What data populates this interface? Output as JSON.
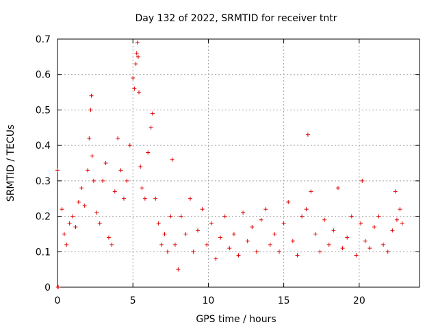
{
  "chart_data": {
    "type": "scatter",
    "title": "Day 132 of 2022, SRMTID for receiver tntr",
    "xlabel": "GPS time / hours",
    "ylabel": "SRMTID / TECUs",
    "xlim": [
      0,
      24
    ],
    "ylim": [
      0,
      0.7
    ],
    "xticks": [
      "0",
      "5",
      "10",
      "15",
      "20"
    ],
    "xtick_values": [
      0,
      5,
      10,
      15,
      20
    ],
    "yticks": [
      "0",
      "0.1",
      "0.2",
      "0.3",
      "0.4",
      "0.5",
      "0.6",
      "0.7"
    ],
    "ytick_values": [
      0,
      0.1,
      0.2,
      0.3,
      0.4,
      0.5,
      0.6,
      0.7
    ],
    "grid": true,
    "marker": "+",
    "color": "#e00000",
    "series": [
      {
        "name": "SRMTID",
        "x": [
          0.0,
          0.03,
          0.05,
          0.3,
          0.45,
          0.6,
          0.8,
          1.0,
          1.2,
          1.4,
          1.6,
          1.8,
          2.0,
          2.1,
          2.2,
          2.25,
          2.3,
          2.4,
          2.6,
          2.8,
          3.0,
          3.2,
          3.4,
          3.6,
          3.8,
          4.0,
          4.2,
          4.4,
          4.6,
          4.8,
          5.0,
          5.1,
          5.2,
          5.25,
          5.3,
          5.35,
          5.4,
          5.5,
          5.6,
          5.8,
          6.0,
          6.2,
          6.3,
          6.5,
          6.7,
          6.9,
          7.1,
          7.3,
          7.5,
          7.6,
          7.8,
          8.0,
          8.2,
          8.5,
          8.8,
          9.0,
          9.3,
          9.6,
          9.9,
          10.2,
          10.5,
          10.8,
          11.1,
          11.4,
          11.7,
          12.0,
          12.3,
          12.6,
          12.9,
          13.2,
          13.5,
          13.8,
          14.1,
          14.4,
          14.7,
          15.0,
          15.3,
          15.6,
          15.9,
          16.2,
          16.5,
          16.6,
          16.8,
          17.1,
          17.4,
          17.7,
          18.0,
          18.3,
          18.6,
          18.9,
          19.2,
          19.5,
          19.8,
          20.1,
          20.2,
          20.4,
          20.7,
          21.0,
          21.3,
          21.6,
          21.9,
          22.2,
          22.4,
          22.5,
          22.7,
          22.85
        ],
        "values": [
          0.33,
          0.0,
          0.0,
          0.22,
          0.15,
          0.12,
          0.18,
          0.2,
          0.17,
          0.24,
          0.28,
          0.23,
          0.33,
          0.42,
          0.5,
          0.54,
          0.37,
          0.3,
          0.21,
          0.18,
          0.3,
          0.35,
          0.14,
          0.12,
          0.27,
          0.42,
          0.33,
          0.25,
          0.3,
          0.4,
          0.59,
          0.56,
          0.63,
          0.66,
          0.69,
          0.65,
          0.55,
          0.34,
          0.28,
          0.25,
          0.38,
          0.45,
          0.49,
          0.25,
          0.18,
          0.12,
          0.15,
          0.1,
          0.2,
          0.36,
          0.12,
          0.05,
          0.2,
          0.15,
          0.25,
          0.1,
          0.16,
          0.22,
          0.12,
          0.18,
          0.08,
          0.14,
          0.2,
          0.11,
          0.15,
          0.09,
          0.21,
          0.13,
          0.17,
          0.1,
          0.19,
          0.22,
          0.12,
          0.15,
          0.1,
          0.18,
          0.24,
          0.13,
          0.09,
          0.2,
          0.22,
          0.43,
          0.27,
          0.15,
          0.1,
          0.19,
          0.12,
          0.16,
          0.28,
          0.11,
          0.14,
          0.2,
          0.09,
          0.18,
          0.3,
          0.13,
          0.11,
          0.17,
          0.2,
          0.12,
          0.1,
          0.16,
          0.27,
          0.19,
          0.22,
          0.18
        ]
      }
    ]
  }
}
